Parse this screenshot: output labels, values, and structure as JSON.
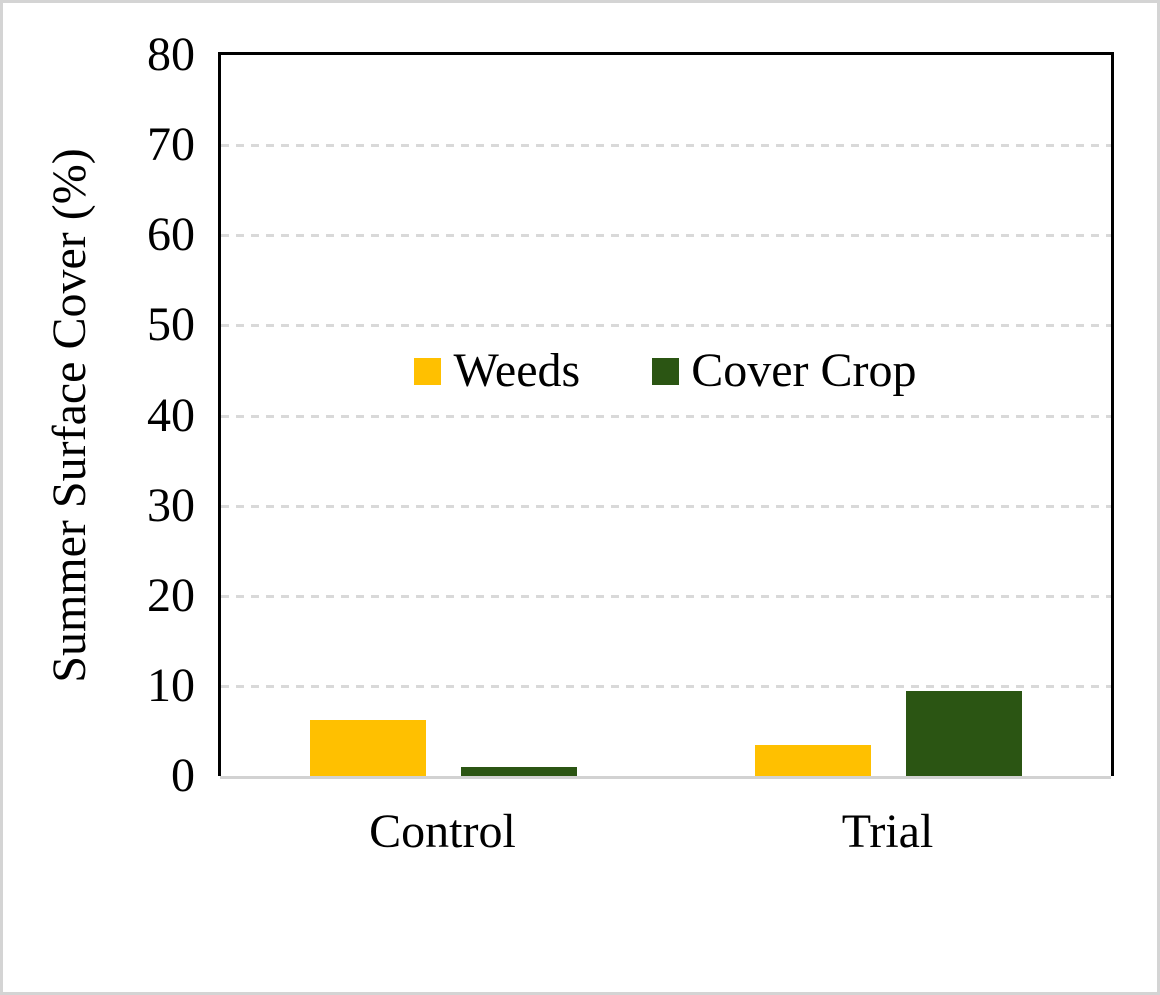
{
  "chart_data": {
    "type": "bar",
    "title": "",
    "xlabel": "",
    "ylabel": "Summer Surface Cover (%)",
    "categories": [
      "Control",
      "Trial"
    ],
    "series": [
      {
        "name": "Weeds",
        "color": "#FFC000",
        "values": [
          6.2,
          3.4
        ]
      },
      {
        "name": "Cover Crop",
        "color": "#2B5513",
        "values": [
          1.0,
          9.4
        ]
      }
    ],
    "ylim": [
      0,
      80
    ],
    "ytick_interval": 10,
    "yticks": [
      0,
      10,
      20,
      30,
      40,
      50,
      60,
      70,
      80
    ],
    "grid": "horizontal-dashed",
    "legend_position": "inside-top-center"
  },
  "colors": {
    "gridline": "#D9D9D9",
    "x_axis_line": "#D2D2D2",
    "plot_border": "#000000",
    "text": "#000000",
    "outer_frame": "#D4D4D4"
  }
}
